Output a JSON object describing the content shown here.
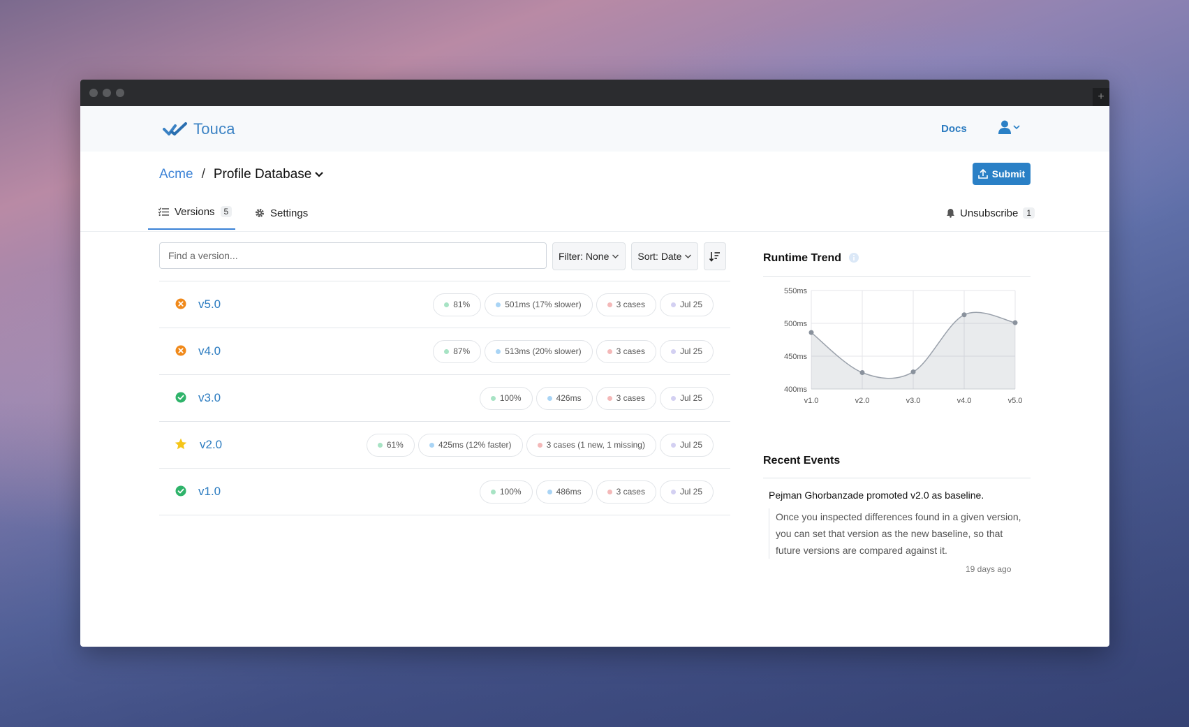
{
  "app": {
    "name": "Touca"
  },
  "nav": {
    "docs": "Docs"
  },
  "breadcrumb": {
    "team": "Acme",
    "separator": "/",
    "suite": "Profile Database"
  },
  "submit": {
    "label": "Submit"
  },
  "tabs": [
    {
      "label": "Versions",
      "count": "5",
      "icon": "list-icon"
    },
    {
      "label": "Settings",
      "icon": "gear-icon"
    }
  ],
  "unsubscribe": {
    "label": "Unsubscribe",
    "count": "1"
  },
  "search": {
    "placeholder": "Find a version..."
  },
  "filter": {
    "label": "Filter: None"
  },
  "sort": {
    "label": "Sort: Date"
  },
  "colors": {
    "accent": "#2a80c6",
    "link": "#2b7bc0",
    "fail": "#f0891a",
    "pass": "#2fb36a",
    "baseline": "#f5c518"
  },
  "versions": [
    {
      "name": "v5.0",
      "status": "fail",
      "match": "81%",
      "time": "501ms (17% slower)",
      "cases": "3 cases",
      "date": "Jul 25"
    },
    {
      "name": "v4.0",
      "status": "fail",
      "match": "87%",
      "time": "513ms (20% slower)",
      "cases": "3 cases",
      "date": "Jul 25"
    },
    {
      "name": "v3.0",
      "status": "pass",
      "match": "100%",
      "time": "426ms",
      "cases": "3 cases",
      "date": "Jul 25"
    },
    {
      "name": "v2.0",
      "status": "baseline",
      "match": "61%",
      "time": "425ms (12% faster)",
      "cases": "3 cases (1 new, 1 missing)",
      "date": "Jul 25"
    },
    {
      "name": "v1.0",
      "status": "pass",
      "match": "100%",
      "time": "486ms",
      "cases": "3 cases",
      "date": "Jul 25"
    }
  ],
  "trend": {
    "title": "Runtime Trend",
    "chart_data": {
      "type": "area",
      "categories": [
        "v1.0",
        "v2.0",
        "v3.0",
        "v4.0",
        "v5.0"
      ],
      "values": [
        486,
        425,
        426,
        513,
        501
      ],
      "ylim": [
        400,
        550
      ],
      "yticks": [
        "550ms",
        "500ms",
        "450ms",
        "400ms"
      ],
      "grid": true
    }
  },
  "events": {
    "title": "Recent Events",
    "items": [
      {
        "user": "Pejman Ghorbanzade",
        "action": "promoted",
        "target": "v2.0",
        "suffix": "as baseline.",
        "description": "Once you inspected differences found in a given version, you can set that version as the new baseline, so that future versions are compared against it.",
        "time": "19 days ago"
      }
    ]
  }
}
